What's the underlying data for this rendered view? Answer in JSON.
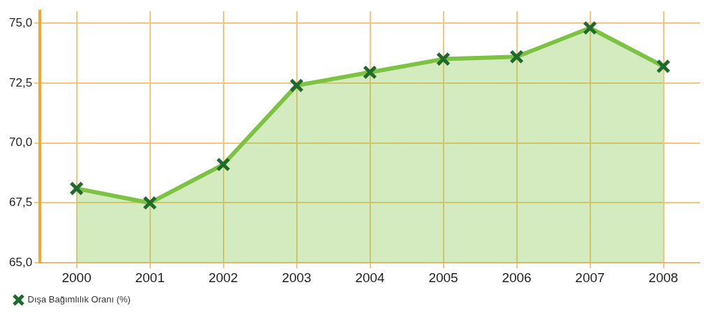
{
  "chart_data": {
    "type": "area",
    "categories": [
      "2000",
      "2001",
      "2002",
      "2003",
      "2004",
      "2005",
      "2006",
      "2007",
      "2008"
    ],
    "series": [
      {
        "name": "Dışa Bağımlılık Oranı (%)",
        "color": "#7dc242",
        "values": [
          68.1,
          67.5,
          69.1,
          72.4,
          72.95,
          73.5,
          73.6,
          74.8,
          73.2
        ]
      }
    ],
    "ylim": [
      65,
      75.5
    ],
    "yticks": [
      {
        "value": 65,
        "label": "65,0"
      },
      {
        "value": 67.5,
        "label": "67,5"
      },
      {
        "value": 70,
        "label": "70,0"
      },
      {
        "value": 72.5,
        "label": "72,5"
      },
      {
        "value": 75,
        "label": "75,0"
      }
    ],
    "grid": true,
    "legend": "bottom left",
    "marker": "cross"
  }
}
